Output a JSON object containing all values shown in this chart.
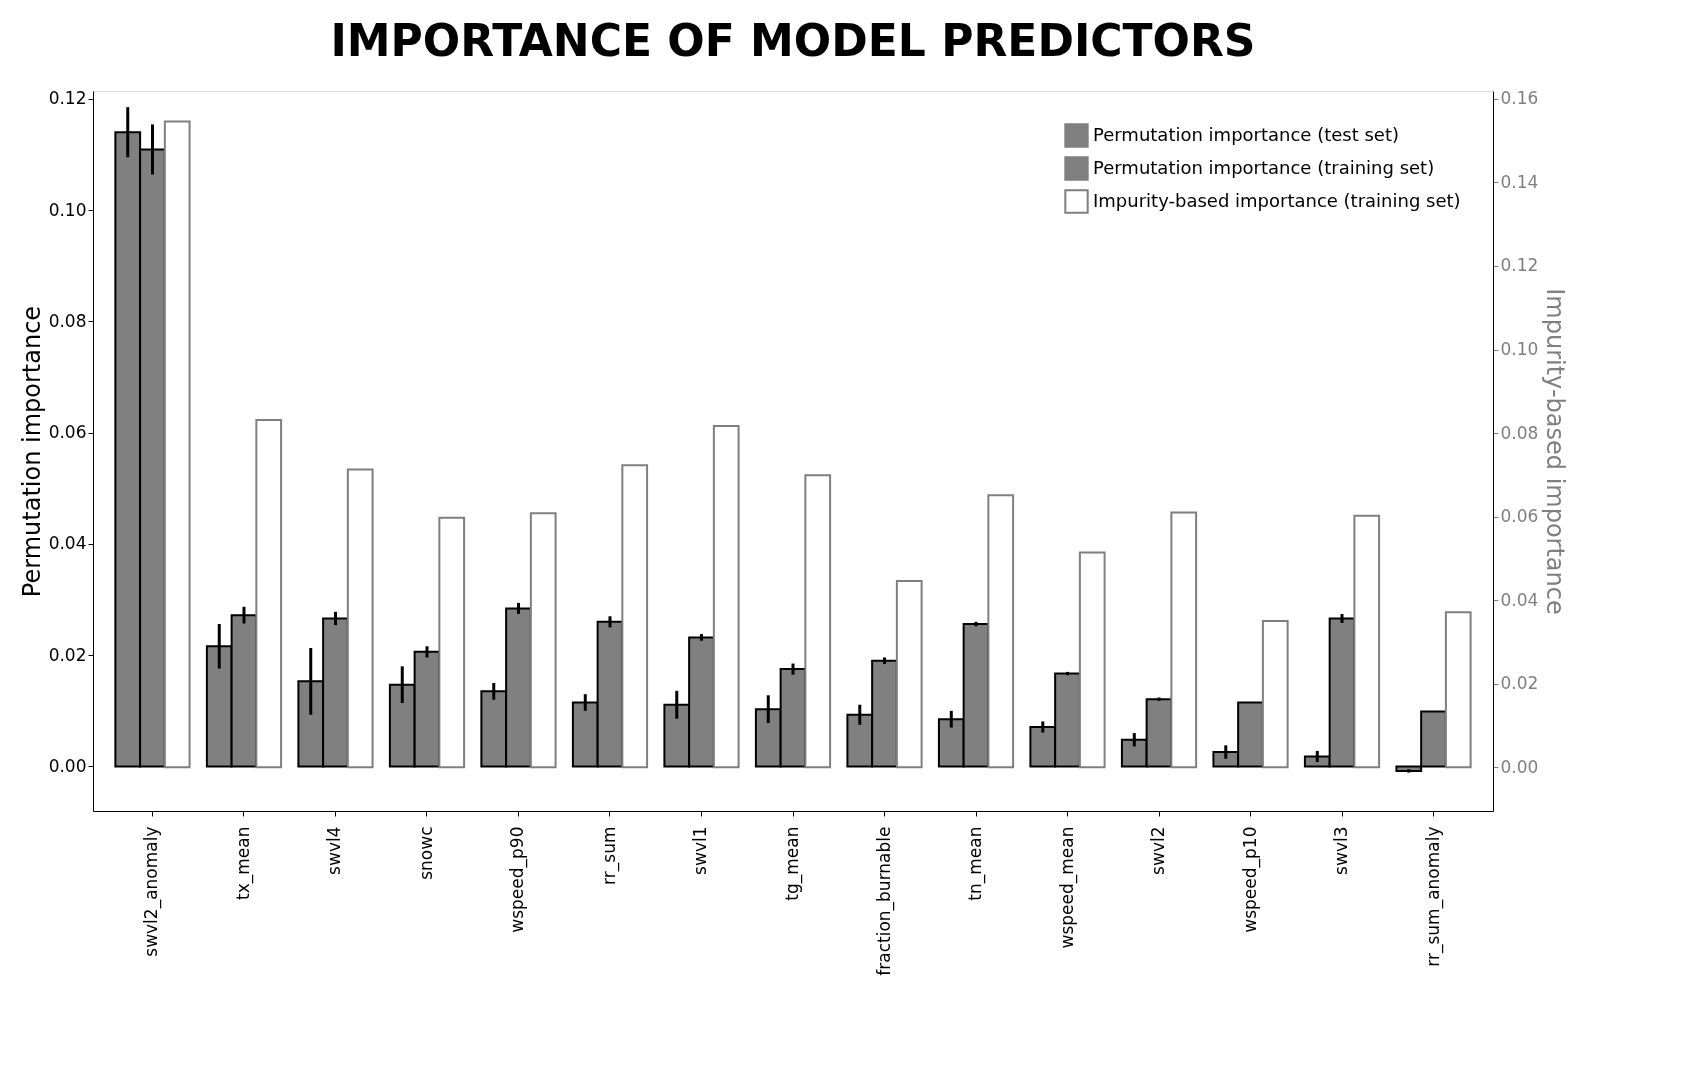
{
  "chart_data": {
    "type": "bar",
    "title": "IMPORTANCE OF MODEL PREDICTORS",
    "ylabel": "Permutation importance",
    "y2label": "Impurity-based importance",
    "categories": [
      "swvl2_anomaly",
      "tx_mean",
      "swvl4",
      "snowc",
      "wspeed_p90",
      "rr_sum",
      "swvl1",
      "tg_mean",
      "fraction_burnable",
      "tn_mean",
      "wspeed_mean",
      "swvl2",
      "wspeed_p10",
      "swvl3",
      "rr_sum_anomaly"
    ],
    "series": [
      {
        "name": "Permutation importance (test set)",
        "color": "#808080",
        "values": [
          0.114,
          0.0216,
          0.0153,
          0.0147,
          0.0135,
          0.0115,
          0.0111,
          0.0103,
          0.0093,
          0.0085,
          0.0071,
          0.0048,
          0.0026,
          0.0018,
          -0.0008
        ],
        "errors": [
          0.0045,
          0.004,
          0.006,
          0.0033,
          0.0015,
          0.0015,
          0.0025,
          0.0025,
          0.0018,
          0.0015,
          0.001,
          0.0012,
          0.0012,
          0.001,
          0.0003
        ]
      },
      {
        "name": "Permutation importance (training set)",
        "color": "#808080",
        "values": [
          0.1109,
          0.0272,
          0.0266,
          0.0206,
          0.0284,
          0.026,
          0.0232,
          0.0175,
          0.019,
          0.0256,
          0.0167,
          0.0121,
          0.0115,
          0.0266,
          0.0099
        ],
        "errors": [
          0.0045,
          0.0015,
          0.0012,
          0.001,
          0.001,
          0.001,
          0.0006,
          0.001,
          0.0006,
          0.0004,
          0.0003,
          0.0003,
          null,
          0.0008,
          null
        ]
      },
      {
        "name": "Impurity-based importance (training set)",
        "color": "#ffffff",
        "axis": "y2",
        "values": [
          0.1546,
          0.0831,
          0.0713,
          0.0597,
          0.0608,
          0.0723,
          0.0817,
          0.0699,
          0.0446,
          0.0651,
          0.0514,
          0.061,
          0.035,
          0.0602,
          0.0371
        ]
      }
    ],
    "ylim": [
      -0.008,
      0.1214
    ],
    "yticks": [
      {
        "value": 0,
        "label": "0.00"
      },
      0.02,
      0.04,
      0.06,
      0.08,
      {
        "value": 0.1,
        "label": "0.10"
      },
      0.12
    ],
    "y2lim": [
      -0.0105,
      0.1619
    ],
    "y2ticks": [
      {
        "value": 0,
        "label": "0.00"
      },
      0.02,
      0.04,
      0.06,
      0.08,
      {
        "value": 0.1,
        "label": "0.10"
      },
      0.12,
      0.14,
      0.16
    ],
    "legend": "top right",
    "grid": false
  }
}
